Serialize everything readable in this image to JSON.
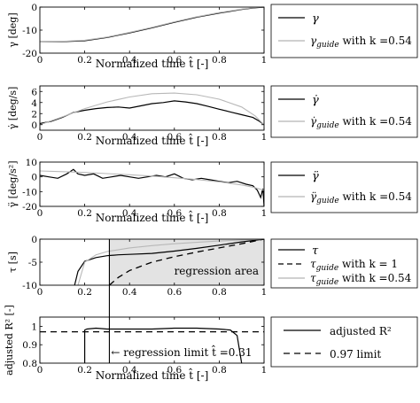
{
  "chart_data": [
    {
      "type": "line",
      "ylabel": "γ [deg]",
      "xlabel": "Normalized time t̂ [-]",
      "xlim": [
        0,
        1
      ],
      "ylim": [
        -20,
        0
      ],
      "xticks": [
        "0",
        "0.2",
        "0.4",
        "0.6",
        "0.8",
        "1"
      ],
      "yticks": [
        "0",
        "-10",
        "-20"
      ],
      "legend_location": "right",
      "series": [
        {
          "name": "γ",
          "style": "solid-black",
          "x": [
            0,
            0.1,
            0.2,
            0.3,
            0.4,
            0.5,
            0.6,
            0.7,
            0.8,
            0.9,
            0.96,
            1.0
          ],
          "y": [
            -15,
            -15,
            -14.6,
            -13.2,
            -11.2,
            -9.0,
            -6.6,
            -4.4,
            -2.6,
            -1.0,
            -0.3,
            0
          ]
        },
        {
          "name": "γguide with k =0.54",
          "style": "solid-gray",
          "x": [
            0,
            0.1,
            0.2,
            0.3,
            0.4,
            0.5,
            0.6,
            0.7,
            0.8,
            0.9,
            0.96,
            1.0
          ],
          "y": [
            -15,
            -14.9,
            -14.4,
            -13.0,
            -11.0,
            -8.8,
            -6.4,
            -4.2,
            -2.4,
            -0.9,
            -0.2,
            0
          ]
        }
      ]
    },
    {
      "type": "line",
      "ylabel": "γ̇ [deg/s]",
      "xlabel": "Normalized time t̂ [-]",
      "xlim": [
        0,
        1
      ],
      "ylim": [
        -1,
        7
      ],
      "xticks": [
        "0",
        "0.2",
        "0.4",
        "0.6",
        "0.8",
        "1"
      ],
      "yticks": [
        "6",
        "4",
        "2",
        "0"
      ],
      "legend_location": "right",
      "series": [
        {
          "name": "γ̇",
          "style": "solid-black",
          "x": [
            0,
            0.05,
            0.1,
            0.15,
            0.2,
            0.25,
            0.3,
            0.35,
            0.4,
            0.45,
            0.5,
            0.55,
            0.6,
            0.65,
            0.7,
            0.75,
            0.8,
            0.85,
            0.9,
            0.95,
            0.98,
            1.0
          ],
          "y": [
            0.2,
            0.6,
            1.3,
            2.2,
            2.6,
            2.9,
            3.1,
            3.2,
            3.0,
            3.4,
            3.8,
            4.0,
            4.3,
            4.1,
            3.8,
            3.3,
            2.8,
            2.3,
            1.8,
            1.3,
            0.6,
            0
          ]
        },
        {
          "name": "γ̇guide with k =0.54",
          "style": "solid-gray",
          "x": [
            0,
            0.1,
            0.2,
            0.3,
            0.4,
            0.5,
            0.6,
            0.7,
            0.8,
            0.9,
            0.96,
            1.0
          ],
          "y": [
            0,
            1.4,
            2.9,
            4.1,
            5.0,
            5.6,
            5.7,
            5.4,
            4.6,
            3.2,
            1.6,
            0
          ]
        }
      ]
    },
    {
      "type": "line",
      "ylabel": "γ̈ [deg/s²]",
      "xlabel": "Normalized time t̂ [-]",
      "xlim": [
        0,
        1
      ],
      "ylim": [
        -20,
        10
      ],
      "xticks": [
        "0",
        "0.2",
        "0.4",
        "0.6",
        "0.8",
        "1"
      ],
      "yticks": [
        "10",
        "0",
        "-10",
        "-20"
      ],
      "legend_location": "right",
      "series": [
        {
          "name": "γ̈",
          "style": "solid-black",
          "x": [
            0,
            0.04,
            0.08,
            0.12,
            0.15,
            0.17,
            0.2,
            0.24,
            0.28,
            0.32,
            0.36,
            0.4,
            0.44,
            0.48,
            0.52,
            0.56,
            0.6,
            0.64,
            0.68,
            0.72,
            0.76,
            0.8,
            0.84,
            0.88,
            0.92,
            0.95,
            0.97,
            0.985,
            0.995,
            1.0
          ],
          "y": [
            1,
            0,
            -1,
            2,
            5,
            2,
            1,
            2,
            -1,
            0,
            1,
            0,
            -1,
            0,
            1,
            0,
            2,
            -1,
            -2,
            -1,
            -2,
            -3,
            -4,
            -3,
            -5,
            -6,
            -9,
            -14,
            -8,
            -20
          ]
        },
        {
          "name": "γ̈guide with k =0.54",
          "style": "solid-gray",
          "x": [
            0,
            0.1,
            0.2,
            0.3,
            0.4,
            0.5,
            0.6,
            0.7,
            0.8,
            0.9,
            0.95,
            1.0
          ],
          "y": [
            4,
            3.5,
            3,
            2.2,
            1.4,
            0.5,
            -0.6,
            -1.8,
            -3.4,
            -5.5,
            -7,
            -9
          ]
        }
      ]
    },
    {
      "type": "line",
      "ylabel": "τ [s]",
      "xlabel": "",
      "xlim": [
        0,
        1
      ],
      "ylim": [
        -10,
        0
      ],
      "xticks": [
        "0",
        "0.2",
        "0.4",
        "0.6",
        "0.8",
        "1"
      ],
      "yticks": [
        "0",
        "-5",
        "-10"
      ],
      "legend_location": "right",
      "annotations": [
        "regression area"
      ],
      "shaded_region_x": [
        0.31,
        1
      ],
      "vertical_line_x": 0.31,
      "series": [
        {
          "name": "τ",
          "style": "solid-black",
          "x": [
            0.155,
            0.17,
            0.2,
            0.25,
            0.3,
            0.35,
            0.4,
            0.5,
            0.6,
            0.7,
            0.8,
            0.9,
            1.0
          ],
          "y": [
            -10,
            -7,
            -4.8,
            -4,
            -3.6,
            -3.4,
            -3.3,
            -3.1,
            -2.6,
            -2.0,
            -1.3,
            -0.6,
            0
          ]
        },
        {
          "name": "τguide with k = 1",
          "style": "dashed-black",
          "x": [
            0.31,
            0.35,
            0.4,
            0.5,
            0.6,
            0.7,
            0.8,
            0.9,
            1.0
          ],
          "y": [
            -10,
            -8.3,
            -6.8,
            -5.0,
            -3.8,
            -2.8,
            -1.9,
            -1.0,
            0
          ]
        },
        {
          "name": "τguide with k =0.54",
          "style": "solid-gray",
          "x": [
            0.17,
            0.2,
            0.25,
            0.3,
            0.4,
            0.5,
            0.6,
            0.7,
            0.8,
            0.9,
            1.0
          ],
          "y": [
            -10,
            -5.0,
            -3.4,
            -2.7,
            -1.9,
            -1.4,
            -1.0,
            -0.7,
            -0.4,
            -0.2,
            0
          ]
        }
      ]
    },
    {
      "type": "line",
      "ylabel": "adjusted R² [-]",
      "xlabel": "Normalized time t̂ [-]",
      "xlim": [
        0,
        1
      ],
      "ylim": [
        0.8,
        1.05
      ],
      "xticks": [
        "0",
        "0.2",
        "0.4",
        "0.6",
        "0.8",
        "1"
      ],
      "yticks": [
        "1",
        "0.9",
        "0.8"
      ],
      "legend_location": "right",
      "annotations": [
        "← regression limit t̂ =0.31"
      ],
      "vertical_line_x": 0.31,
      "series": [
        {
          "name": "adjusted R²",
          "style": "solid-black",
          "x": [
            0.2,
            0.2,
            0.21,
            0.25,
            0.3,
            0.4,
            0.5,
            0.6,
            0.7,
            0.8,
            0.85,
            0.88,
            0.9
          ],
          "y": [
            0.8,
            0.98,
            0.985,
            0.99,
            0.985,
            0.985,
            0.985,
            0.99,
            0.99,
            0.985,
            0.98,
            0.95,
            0.8
          ]
        },
        {
          "name": "0.97 limit",
          "style": "dashed-black",
          "x": [
            0,
            1
          ],
          "y": [
            0.97,
            0.97
          ]
        }
      ]
    }
  ],
  "labels": {
    "legend1_a": "γ",
    "legend1_b_main": "γ",
    "legend1_b_sub": "guide",
    "legend1_b_rest": " with k =0.54",
    "legend2_a": "γ̇",
    "legend2_b_main": "γ̇",
    "legend2_b_sub": "guide",
    "legend2_b_rest": " with k =0.54",
    "legend3_a": "γ̈",
    "legend3_b_main": "γ̈",
    "legend3_b_sub": "guide",
    "legend3_b_rest": " with k =0.54",
    "legend4_a": "τ",
    "legend4_b_main": "τ",
    "legend4_b_sub": "guide",
    "legend4_b_rest": " with k = 1",
    "legend4_c_main": "τ",
    "legend4_c_sub": "guide",
    "legend4_c_rest": " with k =0.54",
    "legend5_a": "adjusted R²",
    "legend5_b": "0.97 limit"
  }
}
